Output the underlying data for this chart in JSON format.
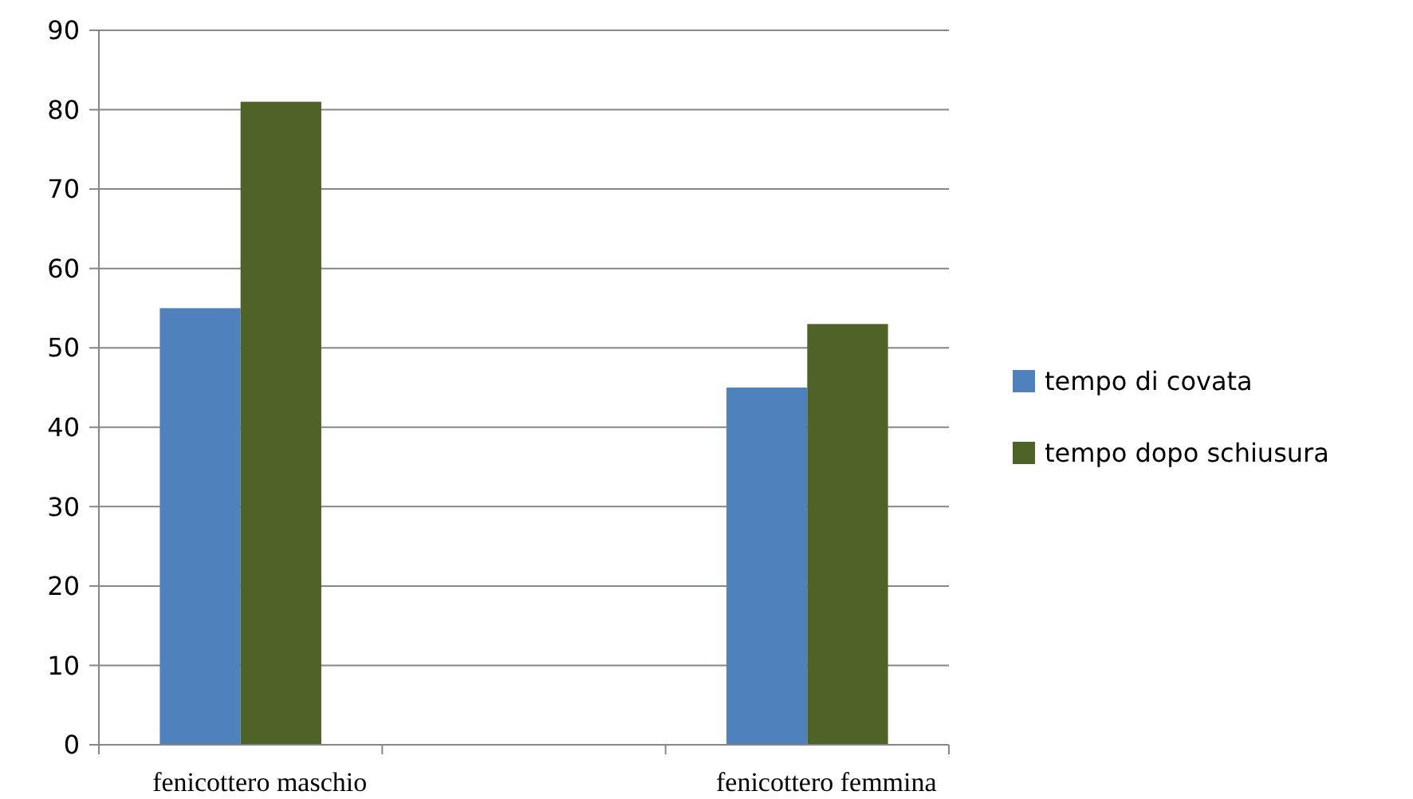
{
  "chart_data": {
    "type": "bar",
    "categories": [
      "fenicottero maschio",
      null,
      "fenicottero femmina"
    ],
    "series": [
      {
        "name": "tempo di covata",
        "color": "#4f81bd",
        "values": [
          55,
          null,
          45
        ]
      },
      {
        "name": "tempo dopo schiusura",
        "color": "#4f6228",
        "values": [
          81,
          null,
          53
        ]
      }
    ],
    "ylim": [
      0,
      90
    ],
    "yticks": [
      0,
      10,
      20,
      30,
      40,
      50,
      60,
      70,
      80,
      90
    ],
    "grid": "y",
    "legend": "right"
  }
}
